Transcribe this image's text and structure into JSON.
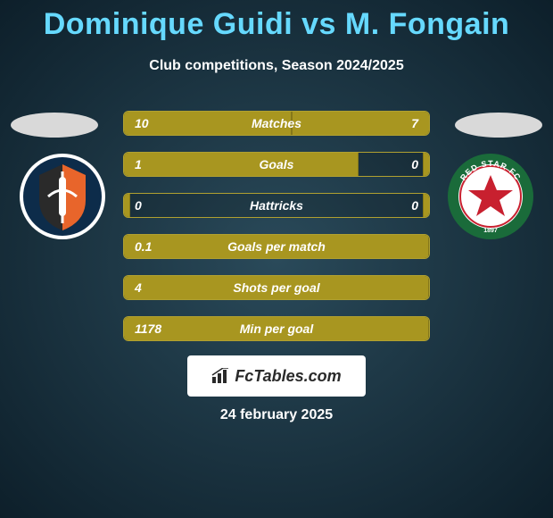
{
  "title": "Dominique Guidi vs M. Fongain",
  "subtitle": "Club competitions, Season 2024/2025",
  "date": "24 february 2025",
  "logo": "FcTables.com",
  "colors": {
    "title": "#66d9ff",
    "text": "#ffffff",
    "bar_fill": "#a89620",
    "bar_border": "#b0a030",
    "logo_bg": "#ffffff",
    "logo_text": "#2a2a2a"
  },
  "crest_left": {
    "ring": "#0d2c4a",
    "shield_bg": "#333333",
    "accent": "#e8652b"
  },
  "crest_right": {
    "ring": "#1a6b3a",
    "inner_bg": "#ffffff",
    "star": "#c8202f",
    "text": "RED STAR FC"
  },
  "stats": [
    {
      "label": "Matches",
      "left_val": "10",
      "right_val": "7",
      "left_pct": 55,
      "right_pct": 45
    },
    {
      "label": "Goals",
      "left_val": "1",
      "right_val": "0",
      "left_pct": 77,
      "right_pct": 2
    },
    {
      "label": "Hattricks",
      "left_val": "0",
      "right_val": "0",
      "left_pct": 2,
      "right_pct": 2
    },
    {
      "label": "Goals per match",
      "left_val": "0.1",
      "right_val": "",
      "left_pct": 100,
      "right_pct": 0
    },
    {
      "label": "Shots per goal",
      "left_val": "4",
      "right_val": "",
      "left_pct": 100,
      "right_pct": 0
    },
    {
      "label": "Min per goal",
      "left_val": "1178",
      "right_val": "",
      "left_pct": 100,
      "right_pct": 0
    }
  ]
}
